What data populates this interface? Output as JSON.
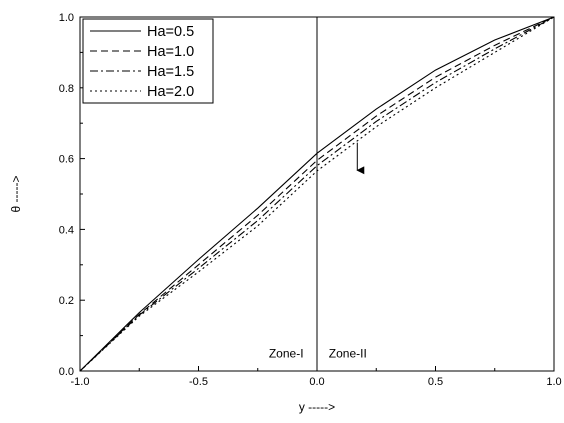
{
  "chart_data": {
    "type": "line",
    "title": "",
    "xlabel": "y ----->",
    "ylabel": "θ ----->",
    "xlim": [
      -1.0,
      1.0
    ],
    "ylim": [
      0.0,
      1.0
    ],
    "xticks": [
      -1.0,
      -0.5,
      0.0,
      0.5,
      1.0
    ],
    "yticks": [
      0.0,
      0.2,
      0.4,
      0.6,
      0.8,
      1.0
    ],
    "xtick_labels": [
      "-1.0",
      "-0.5",
      "0.0",
      "0.5",
      "1.0"
    ],
    "ytick_labels": [
      "0.0",
      "0.2",
      "0.4",
      "0.6",
      "0.8",
      "1.0"
    ],
    "grid": false,
    "legend_position": "top-left",
    "x": [
      -1.0,
      -0.75,
      -0.5,
      -0.25,
      0.0,
      0.25,
      0.5,
      0.75,
      1.0
    ],
    "series": [
      {
        "name": "Ha=0.5",
        "linestyle": "solid",
        "values": [
          0.0,
          0.165,
          0.315,
          0.46,
          0.615,
          0.74,
          0.85,
          0.935,
          1.0
        ]
      },
      {
        "name": "Ha=1.0",
        "linestyle": "dashed",
        "values": [
          0.0,
          0.16,
          0.3,
          0.44,
          0.595,
          0.72,
          0.83,
          0.92,
          1.0
        ]
      },
      {
        "name": "Ha=1.5",
        "linestyle": "dashdot",
        "values": [
          0.0,
          0.158,
          0.29,
          0.425,
          0.58,
          0.705,
          0.815,
          0.91,
          1.0
        ]
      },
      {
        "name": "Ha=2.0",
        "linestyle": "dotted",
        "values": [
          0.0,
          0.155,
          0.28,
          0.41,
          0.565,
          0.69,
          0.8,
          0.9,
          1.0
        ]
      }
    ],
    "annotations": [
      {
        "text": "Zone-I",
        "x": -0.13,
        "y": 0.05
      },
      {
        "text": "Zone-II",
        "x": 0.13,
        "y": 0.05
      }
    ],
    "vertical_line_x": 0.0,
    "arrow": {
      "from": [
        0.17,
        0.645
      ],
      "to": [
        0.17,
        0.55
      ]
    }
  }
}
